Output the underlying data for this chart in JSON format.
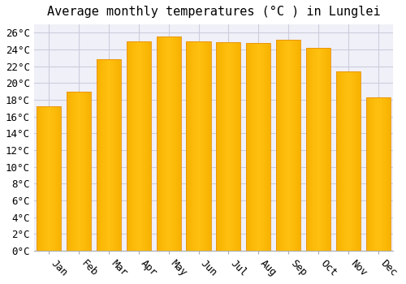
{
  "title": "Average monthly temperatures (°C ) in Lunglei",
  "months": [
    "Jan",
    "Feb",
    "Mar",
    "Apr",
    "May",
    "Jun",
    "Jul",
    "Aug",
    "Sep",
    "Oct",
    "Nov",
    "Dec"
  ],
  "temperatures": [
    17.2,
    19.0,
    22.8,
    25.0,
    25.6,
    25.0,
    24.9,
    24.8,
    25.2,
    24.2,
    21.4,
    18.3
  ],
  "bar_color_top": "#FFC125",
  "bar_color_bottom": "#F5A623",
  "bar_edge_color": "#E8900A",
  "background_color": "#FFFFFF",
  "plot_bg_color": "#F0F0F8",
  "grid_color": "#CCCCDD",
  "ylim": [
    0,
    27
  ],
  "ytick_step": 2,
  "title_fontsize": 11,
  "tick_fontsize": 9,
  "font_family": "monospace"
}
